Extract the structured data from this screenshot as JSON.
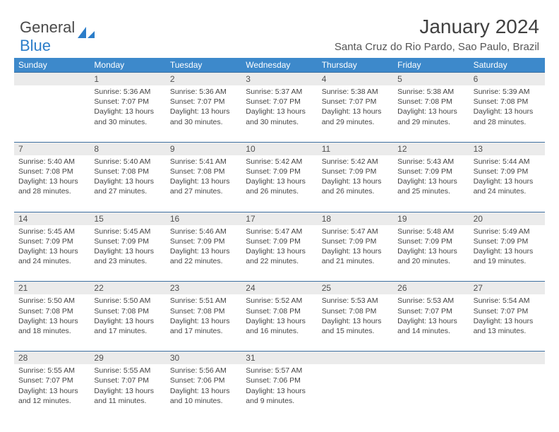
{
  "logo": {
    "text1": "General",
    "text2": "Blue"
  },
  "title": "January 2024",
  "location": "Santa Cruz do Rio Pardo, Sao Paulo, Brazil",
  "colors": {
    "header_bg": "#3d89cb",
    "header_text": "#ffffff",
    "daynum_bg": "#ebebeb",
    "border": "#3d6fa0",
    "logo_blue": "#2b7dc9",
    "body_text": "#444444"
  },
  "daysOfWeek": [
    "Sunday",
    "Monday",
    "Tuesday",
    "Wednesday",
    "Thursday",
    "Friday",
    "Saturday"
  ],
  "weeks": [
    [
      {
        "num": "",
        "sunrise": "",
        "sunset": "",
        "daylight": ""
      },
      {
        "num": "1",
        "sunrise": "5:36 AM",
        "sunset": "7:07 PM",
        "daylight": "13 hours and 30 minutes."
      },
      {
        "num": "2",
        "sunrise": "5:36 AM",
        "sunset": "7:07 PM",
        "daylight": "13 hours and 30 minutes."
      },
      {
        "num": "3",
        "sunrise": "5:37 AM",
        "sunset": "7:07 PM",
        "daylight": "13 hours and 30 minutes."
      },
      {
        "num": "4",
        "sunrise": "5:38 AM",
        "sunset": "7:07 PM",
        "daylight": "13 hours and 29 minutes."
      },
      {
        "num": "5",
        "sunrise": "5:38 AM",
        "sunset": "7:08 PM",
        "daylight": "13 hours and 29 minutes."
      },
      {
        "num": "6",
        "sunrise": "5:39 AM",
        "sunset": "7:08 PM",
        "daylight": "13 hours and 28 minutes."
      }
    ],
    [
      {
        "num": "7",
        "sunrise": "5:40 AM",
        "sunset": "7:08 PM",
        "daylight": "13 hours and 28 minutes."
      },
      {
        "num": "8",
        "sunrise": "5:40 AM",
        "sunset": "7:08 PM",
        "daylight": "13 hours and 27 minutes."
      },
      {
        "num": "9",
        "sunrise": "5:41 AM",
        "sunset": "7:08 PM",
        "daylight": "13 hours and 27 minutes."
      },
      {
        "num": "10",
        "sunrise": "5:42 AM",
        "sunset": "7:09 PM",
        "daylight": "13 hours and 26 minutes."
      },
      {
        "num": "11",
        "sunrise": "5:42 AM",
        "sunset": "7:09 PM",
        "daylight": "13 hours and 26 minutes."
      },
      {
        "num": "12",
        "sunrise": "5:43 AM",
        "sunset": "7:09 PM",
        "daylight": "13 hours and 25 minutes."
      },
      {
        "num": "13",
        "sunrise": "5:44 AM",
        "sunset": "7:09 PM",
        "daylight": "13 hours and 24 minutes."
      }
    ],
    [
      {
        "num": "14",
        "sunrise": "5:45 AM",
        "sunset": "7:09 PM",
        "daylight": "13 hours and 24 minutes."
      },
      {
        "num": "15",
        "sunrise": "5:45 AM",
        "sunset": "7:09 PM",
        "daylight": "13 hours and 23 minutes."
      },
      {
        "num": "16",
        "sunrise": "5:46 AM",
        "sunset": "7:09 PM",
        "daylight": "13 hours and 22 minutes."
      },
      {
        "num": "17",
        "sunrise": "5:47 AM",
        "sunset": "7:09 PM",
        "daylight": "13 hours and 22 minutes."
      },
      {
        "num": "18",
        "sunrise": "5:47 AM",
        "sunset": "7:09 PM",
        "daylight": "13 hours and 21 minutes."
      },
      {
        "num": "19",
        "sunrise": "5:48 AM",
        "sunset": "7:09 PM",
        "daylight": "13 hours and 20 minutes."
      },
      {
        "num": "20",
        "sunrise": "5:49 AM",
        "sunset": "7:09 PM",
        "daylight": "13 hours and 19 minutes."
      }
    ],
    [
      {
        "num": "21",
        "sunrise": "5:50 AM",
        "sunset": "7:08 PM",
        "daylight": "13 hours and 18 minutes."
      },
      {
        "num": "22",
        "sunrise": "5:50 AM",
        "sunset": "7:08 PM",
        "daylight": "13 hours and 17 minutes."
      },
      {
        "num": "23",
        "sunrise": "5:51 AM",
        "sunset": "7:08 PM",
        "daylight": "13 hours and 17 minutes."
      },
      {
        "num": "24",
        "sunrise": "5:52 AM",
        "sunset": "7:08 PM",
        "daylight": "13 hours and 16 minutes."
      },
      {
        "num": "25",
        "sunrise": "5:53 AM",
        "sunset": "7:08 PM",
        "daylight": "13 hours and 15 minutes."
      },
      {
        "num": "26",
        "sunrise": "5:53 AM",
        "sunset": "7:07 PM",
        "daylight": "13 hours and 14 minutes."
      },
      {
        "num": "27",
        "sunrise": "5:54 AM",
        "sunset": "7:07 PM",
        "daylight": "13 hours and 13 minutes."
      }
    ],
    [
      {
        "num": "28",
        "sunrise": "5:55 AM",
        "sunset": "7:07 PM",
        "daylight": "13 hours and 12 minutes."
      },
      {
        "num": "29",
        "sunrise": "5:55 AM",
        "sunset": "7:07 PM",
        "daylight": "13 hours and 11 minutes."
      },
      {
        "num": "30",
        "sunrise": "5:56 AM",
        "sunset": "7:06 PM",
        "daylight": "13 hours and 10 minutes."
      },
      {
        "num": "31",
        "sunrise": "5:57 AM",
        "sunset": "7:06 PM",
        "daylight": "13 hours and 9 minutes."
      },
      {
        "num": "",
        "sunrise": "",
        "sunset": "",
        "daylight": ""
      },
      {
        "num": "",
        "sunrise": "",
        "sunset": "",
        "daylight": ""
      },
      {
        "num": "",
        "sunrise": "",
        "sunset": "",
        "daylight": ""
      }
    ]
  ],
  "labels": {
    "sunrise": "Sunrise:",
    "sunset": "Sunset:",
    "daylight": "Daylight:"
  }
}
